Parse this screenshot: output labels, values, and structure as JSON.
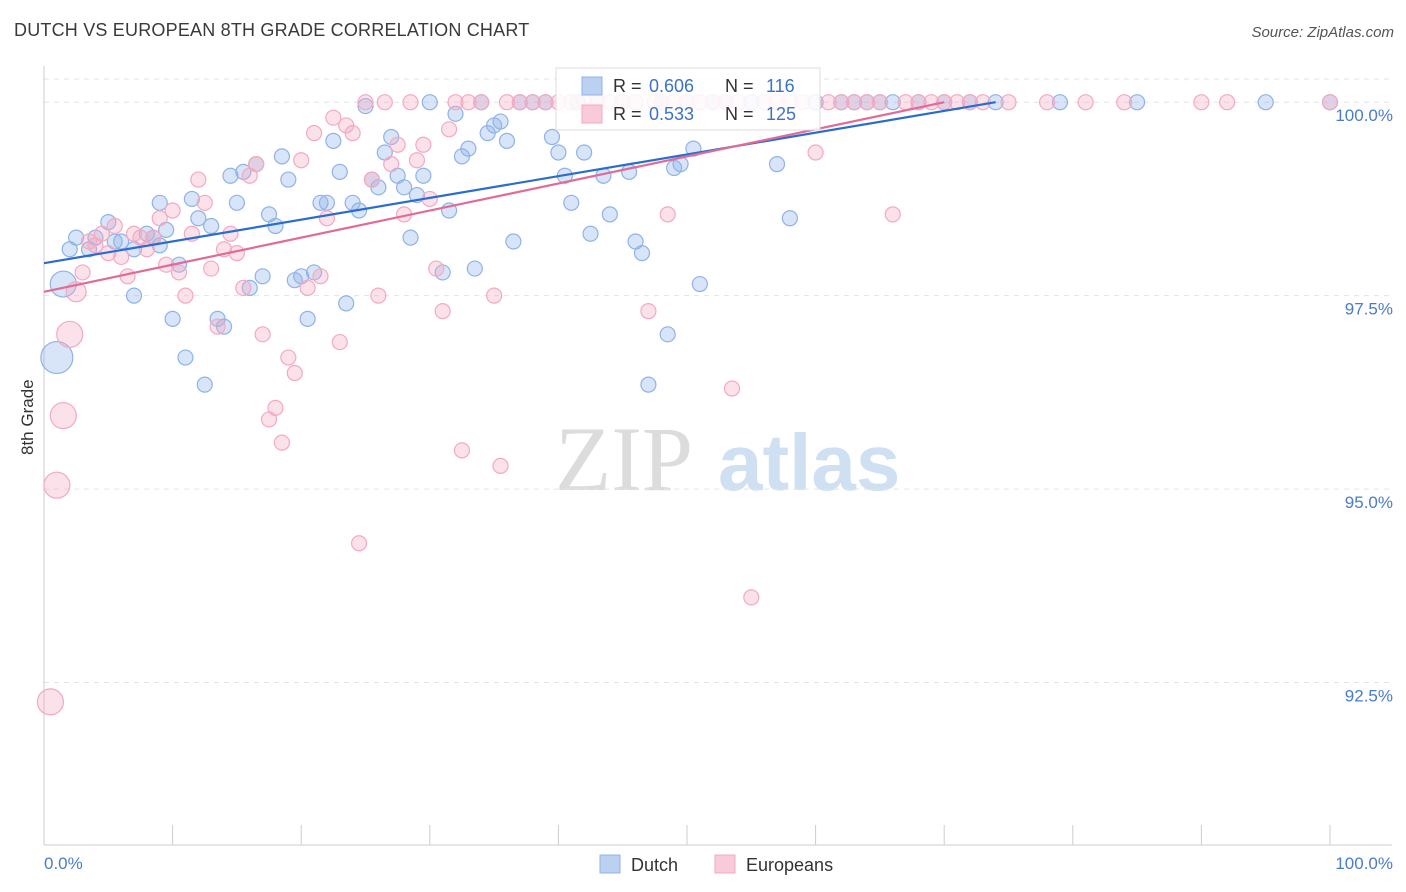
{
  "header": {
    "title": "DUTCH VS EUROPEAN 8TH GRADE CORRELATION CHART",
    "source": "Source: ZipAtlas.com"
  },
  "chart_data": {
    "type": "scatter",
    "title": "DUTCH VS EUROPEAN 8TH GRADE CORRELATION CHART",
    "xlabel": "",
    "ylabel": "8th Grade",
    "xlim": [
      0,
      100
    ],
    "ylim": [
      90.4,
      100.3
    ],
    "x_tick_labels": [
      "0.0%",
      "100.0%"
    ],
    "y_ticks": [
      100.0,
      97.5,
      95.0,
      92.5
    ],
    "y_tick_labels": [
      "100.0%",
      "97.5%",
      "95.0%",
      "92.5%"
    ],
    "grid": true,
    "legend_position": "top-center",
    "watermark": {
      "zip": "ZIP",
      "atlas": "atlas"
    },
    "stats": [
      {
        "r_label": "R =",
        "r": "0.606",
        "n_label": "N =",
        "n": "116"
      },
      {
        "r_label": "R =",
        "r": "0.533",
        "n_label": "N =",
        "n": "125"
      }
    ],
    "series": [
      {
        "name": "Dutch",
        "color": "#8fb3e8",
        "line_color": "#2b6ccf",
        "trend": {
          "x": [
            0,
            74
          ],
          "y": [
            97.92,
            100.0
          ]
        },
        "points": [
          [
            1.5,
            97.65,
            3
          ],
          [
            1,
            96.7,
            4
          ],
          [
            2,
            98.1,
            1
          ],
          [
            2.5,
            98.25,
            1
          ],
          [
            3.5,
            98.1,
            1
          ],
          [
            4,
            98.25,
            1
          ],
          [
            5,
            98.45,
            1
          ],
          [
            5.5,
            98.2,
            1
          ],
          [
            6,
            98.2,
            1
          ],
          [
            7,
            98.1,
            1
          ],
          [
            7,
            97.5,
            1
          ],
          [
            8,
            98.3,
            1
          ],
          [
            8.5,
            98.25,
            1
          ],
          [
            9,
            98.15,
            1
          ],
          [
            9,
            98.7,
            1
          ],
          [
            9.5,
            98.35,
            1
          ],
          [
            10,
            97.2,
            1
          ],
          [
            10.5,
            97.9,
            1
          ],
          [
            11,
            96.7,
            1
          ],
          [
            11.5,
            98.75,
            1
          ],
          [
            12,
            98.5,
            1
          ],
          [
            12.5,
            96.35,
            1
          ],
          [
            13,
            98.4,
            1
          ],
          [
            13.5,
            97.2,
            1
          ],
          [
            14,
            97.1,
            1
          ],
          [
            14.5,
            99.05,
            1
          ],
          [
            15,
            98.7,
            1
          ],
          [
            15.5,
            99.1,
            1
          ],
          [
            16,
            97.6,
            1
          ],
          [
            16.5,
            99.2,
            1
          ],
          [
            17,
            97.75,
            1
          ],
          [
            17.5,
            98.55,
            1
          ],
          [
            18,
            98.4,
            1
          ],
          [
            18.5,
            99.3,
            1
          ],
          [
            19,
            99.0,
            1
          ],
          [
            19.5,
            97.7,
            1
          ],
          [
            20,
            97.75,
            1
          ],
          [
            20.5,
            97.2,
            1
          ],
          [
            21,
            97.8,
            1
          ],
          [
            21.5,
            98.7,
            1
          ],
          [
            22,
            98.7,
            1
          ],
          [
            22.5,
            99.5,
            1
          ],
          [
            23,
            99.1,
            1
          ],
          [
            23.5,
            97.4,
            1
          ],
          [
            24,
            98.7,
            1
          ],
          [
            24.5,
            98.6,
            1
          ],
          [
            25,
            99.95,
            1
          ],
          [
            25.5,
            99.0,
            1
          ],
          [
            26,
            98.9,
            1
          ],
          [
            26.5,
            99.35,
            1
          ],
          [
            27,
            99.55,
            1
          ],
          [
            27.5,
            99.05,
            1
          ],
          [
            28,
            98.9,
            1
          ],
          [
            28.5,
            98.25,
            1
          ],
          [
            29,
            98.8,
            1
          ],
          [
            29.5,
            99.05,
            1
          ],
          [
            30,
            100.0,
            1
          ],
          [
            31,
            97.8,
            1
          ],
          [
            31.5,
            98.6,
            1
          ],
          [
            32,
            99.85,
            1
          ],
          [
            32.5,
            99.3,
            1
          ],
          [
            33,
            99.4,
            1
          ],
          [
            33.5,
            97.85,
            1
          ],
          [
            34,
            100.0,
            1
          ],
          [
            34.5,
            99.6,
            1
          ],
          [
            35,
            99.7,
            1
          ],
          [
            35.5,
            99.75,
            1
          ],
          [
            36,
            99.5,
            1
          ],
          [
            36.5,
            98.2,
            1
          ],
          [
            37,
            100.0,
            1
          ],
          [
            38,
            100.0,
            1
          ],
          [
            39,
            100.0,
            1
          ],
          [
            39.5,
            99.55,
            1
          ],
          [
            40,
            99.35,
            1
          ],
          [
            40.5,
            99.05,
            1
          ],
          [
            41,
            98.7,
            1
          ],
          [
            41.5,
            100.0,
            1
          ],
          [
            42,
            99.35,
            1
          ],
          [
            42.5,
            98.3,
            1
          ],
          [
            43,
            100.0,
            1
          ],
          [
            43.5,
            99.05,
            1
          ],
          [
            44,
            98.55,
            1
          ],
          [
            45,
            100.0,
            1
          ],
          [
            45.5,
            99.1,
            1
          ],
          [
            46,
            98.2,
            1
          ],
          [
            46.5,
            98.05,
            1
          ],
          [
            47,
            96.35,
            1
          ],
          [
            48,
            100.0,
            1
          ],
          [
            48.5,
            97.0,
            1
          ],
          [
            49,
            99.15,
            1
          ],
          [
            49.5,
            99.2,
            1
          ],
          [
            50,
            100.0,
            1
          ],
          [
            50.5,
            99.4,
            1
          ],
          [
            51,
            97.65,
            1
          ],
          [
            52,
            100.0,
            1
          ],
          [
            53,
            100.0,
            1
          ],
          [
            55,
            100.0,
            1
          ],
          [
            57,
            99.2,
            1
          ],
          [
            58,
            98.5,
            1
          ],
          [
            60,
            100.0,
            1
          ],
          [
            62,
            100.0,
            1
          ],
          [
            63,
            100.0,
            1
          ],
          [
            64,
            100.0,
            1
          ],
          [
            65,
            100.0,
            1
          ],
          [
            66,
            100.0,
            1
          ],
          [
            68,
            100.0,
            1
          ],
          [
            70,
            100.0,
            1
          ],
          [
            72,
            100.0,
            1
          ],
          [
            74,
            100.0,
            1
          ],
          [
            79,
            100.0,
            1
          ],
          [
            85,
            100.0,
            1
          ],
          [
            95,
            100.0,
            1
          ],
          [
            100,
            100.0,
            1
          ]
        ]
      },
      {
        "name": "Europeans",
        "color": "#f4a9c1",
        "line_color": "#e26a96",
        "trend": {
          "x": [
            0,
            70
          ],
          "y": [
            97.55,
            100.0
          ]
        },
        "points": [
          [
            0.5,
            92.25,
            3
          ],
          [
            1,
            95.05,
            3
          ],
          [
            1.5,
            95.95,
            3
          ],
          [
            2,
            97.0,
            3
          ],
          [
            2.5,
            97.55,
            2
          ],
          [
            3,
            97.8,
            1
          ],
          [
            3.5,
            98.2,
            1
          ],
          [
            4,
            98.15,
            1
          ],
          [
            4.5,
            98.3,
            1
          ],
          [
            5,
            98.05,
            1
          ],
          [
            5.5,
            98.4,
            1
          ],
          [
            6,
            98.0,
            1
          ],
          [
            6.5,
            97.75,
            1
          ],
          [
            7,
            98.3,
            1
          ],
          [
            7.5,
            98.25,
            1
          ],
          [
            8,
            98.1,
            1
          ],
          [
            8.5,
            98.25,
            1
          ],
          [
            9,
            98.5,
            1
          ],
          [
            9.5,
            97.9,
            1
          ],
          [
            10,
            98.6,
            1
          ],
          [
            10.5,
            97.8,
            1
          ],
          [
            11,
            97.5,
            1
          ],
          [
            11.5,
            98.3,
            1
          ],
          [
            12,
            99.0,
            1
          ],
          [
            12.5,
            98.7,
            1
          ],
          [
            13,
            97.85,
            1
          ],
          [
            13.5,
            97.1,
            1
          ],
          [
            14,
            98.1,
            1
          ],
          [
            14.5,
            98.3,
            1
          ],
          [
            15,
            98.05,
            1
          ],
          [
            15.5,
            97.6,
            1
          ],
          [
            16,
            99.05,
            1
          ],
          [
            16.5,
            99.2,
            1
          ],
          [
            17,
            97.0,
            1
          ],
          [
            17.5,
            95.9,
            1
          ],
          [
            18,
            96.05,
            1
          ],
          [
            18.5,
            95.6,
            1
          ],
          [
            19,
            96.7,
            1
          ],
          [
            19.5,
            96.5,
            1
          ],
          [
            20,
            99.25,
            1
          ],
          [
            20.5,
            97.6,
            1
          ],
          [
            21,
            99.6,
            1
          ],
          [
            21.5,
            97.75,
            1
          ],
          [
            22,
            98.5,
            1
          ],
          [
            22.5,
            99.8,
            1
          ],
          [
            23,
            96.9,
            1
          ],
          [
            23.5,
            99.7,
            1
          ],
          [
            24,
            99.6,
            1
          ],
          [
            24.5,
            94.3,
            1
          ],
          [
            25,
            100.0,
            1
          ],
          [
            25.5,
            99.0,
            1
          ],
          [
            26,
            97.5,
            1
          ],
          [
            26.5,
            100.0,
            1
          ],
          [
            27,
            99.2,
            1
          ],
          [
            27.5,
            99.45,
            1
          ],
          [
            28,
            98.55,
            1
          ],
          [
            28.5,
            100.0,
            1
          ],
          [
            29,
            99.25,
            1
          ],
          [
            29.5,
            99.45,
            1
          ],
          [
            30,
            98.75,
            1
          ],
          [
            30.5,
            97.85,
            1
          ],
          [
            31,
            97.3,
            1
          ],
          [
            31.5,
            99.65,
            1
          ],
          [
            32,
            100.0,
            1
          ],
          [
            32.5,
            95.5,
            1
          ],
          [
            33,
            100.0,
            1
          ],
          [
            34,
            100.0,
            1
          ],
          [
            35,
            97.5,
            1
          ],
          [
            35.5,
            95.3,
            1
          ],
          [
            36,
            100.0,
            1
          ],
          [
            37,
            100.0,
            1
          ],
          [
            38,
            100.0,
            1
          ],
          [
            39,
            100.0,
            1
          ],
          [
            40,
            100.0,
            1
          ],
          [
            41,
            100.0,
            1
          ],
          [
            42,
            100.0,
            1
          ],
          [
            43,
            100.0,
            1
          ],
          [
            44,
            100.0,
            1
          ],
          [
            45,
            100.0,
            1
          ],
          [
            46,
            100.0,
            1
          ],
          [
            47,
            97.3,
            1
          ],
          [
            47.5,
            100.0,
            1
          ],
          [
            48,
            100.0,
            1
          ],
          [
            48.5,
            98.55,
            1
          ],
          [
            49,
            100.0,
            1
          ],
          [
            50,
            100.0,
            1
          ],
          [
            51,
            100.0,
            1
          ],
          [
            52,
            100.0,
            1
          ],
          [
            53,
            100.0,
            1
          ],
          [
            53.5,
            96.3,
            1
          ],
          [
            54,
            100.0,
            1
          ],
          [
            55,
            93.6,
            1
          ],
          [
            56,
            100.0,
            1
          ],
          [
            57,
            100.0,
            1
          ],
          [
            58,
            100.0,
            1
          ],
          [
            59,
            100.0,
            1
          ],
          [
            60,
            99.35,
            1
          ],
          [
            61,
            100.0,
            1
          ],
          [
            62,
            100.0,
            1
          ],
          [
            63,
            100.0,
            1
          ],
          [
            64,
            100.0,
            1
          ],
          [
            65,
            100.0,
            1
          ],
          [
            66,
            98.55,
            1
          ],
          [
            67,
            100.0,
            1
          ],
          [
            68,
            100.0,
            1
          ],
          [
            69,
            100.0,
            1
          ],
          [
            70,
            100.0,
            1
          ],
          [
            71,
            100.0,
            1
          ],
          [
            72,
            100.0,
            1
          ],
          [
            73,
            100.0,
            1
          ],
          [
            75,
            100.0,
            1
          ],
          [
            78,
            100.0,
            1
          ],
          [
            81,
            100.0,
            1
          ],
          [
            84,
            100.0,
            1
          ],
          [
            90,
            100.0,
            1
          ],
          [
            92,
            100.0,
            1
          ],
          [
            100,
            100.0,
            1
          ]
        ]
      }
    ]
  }
}
